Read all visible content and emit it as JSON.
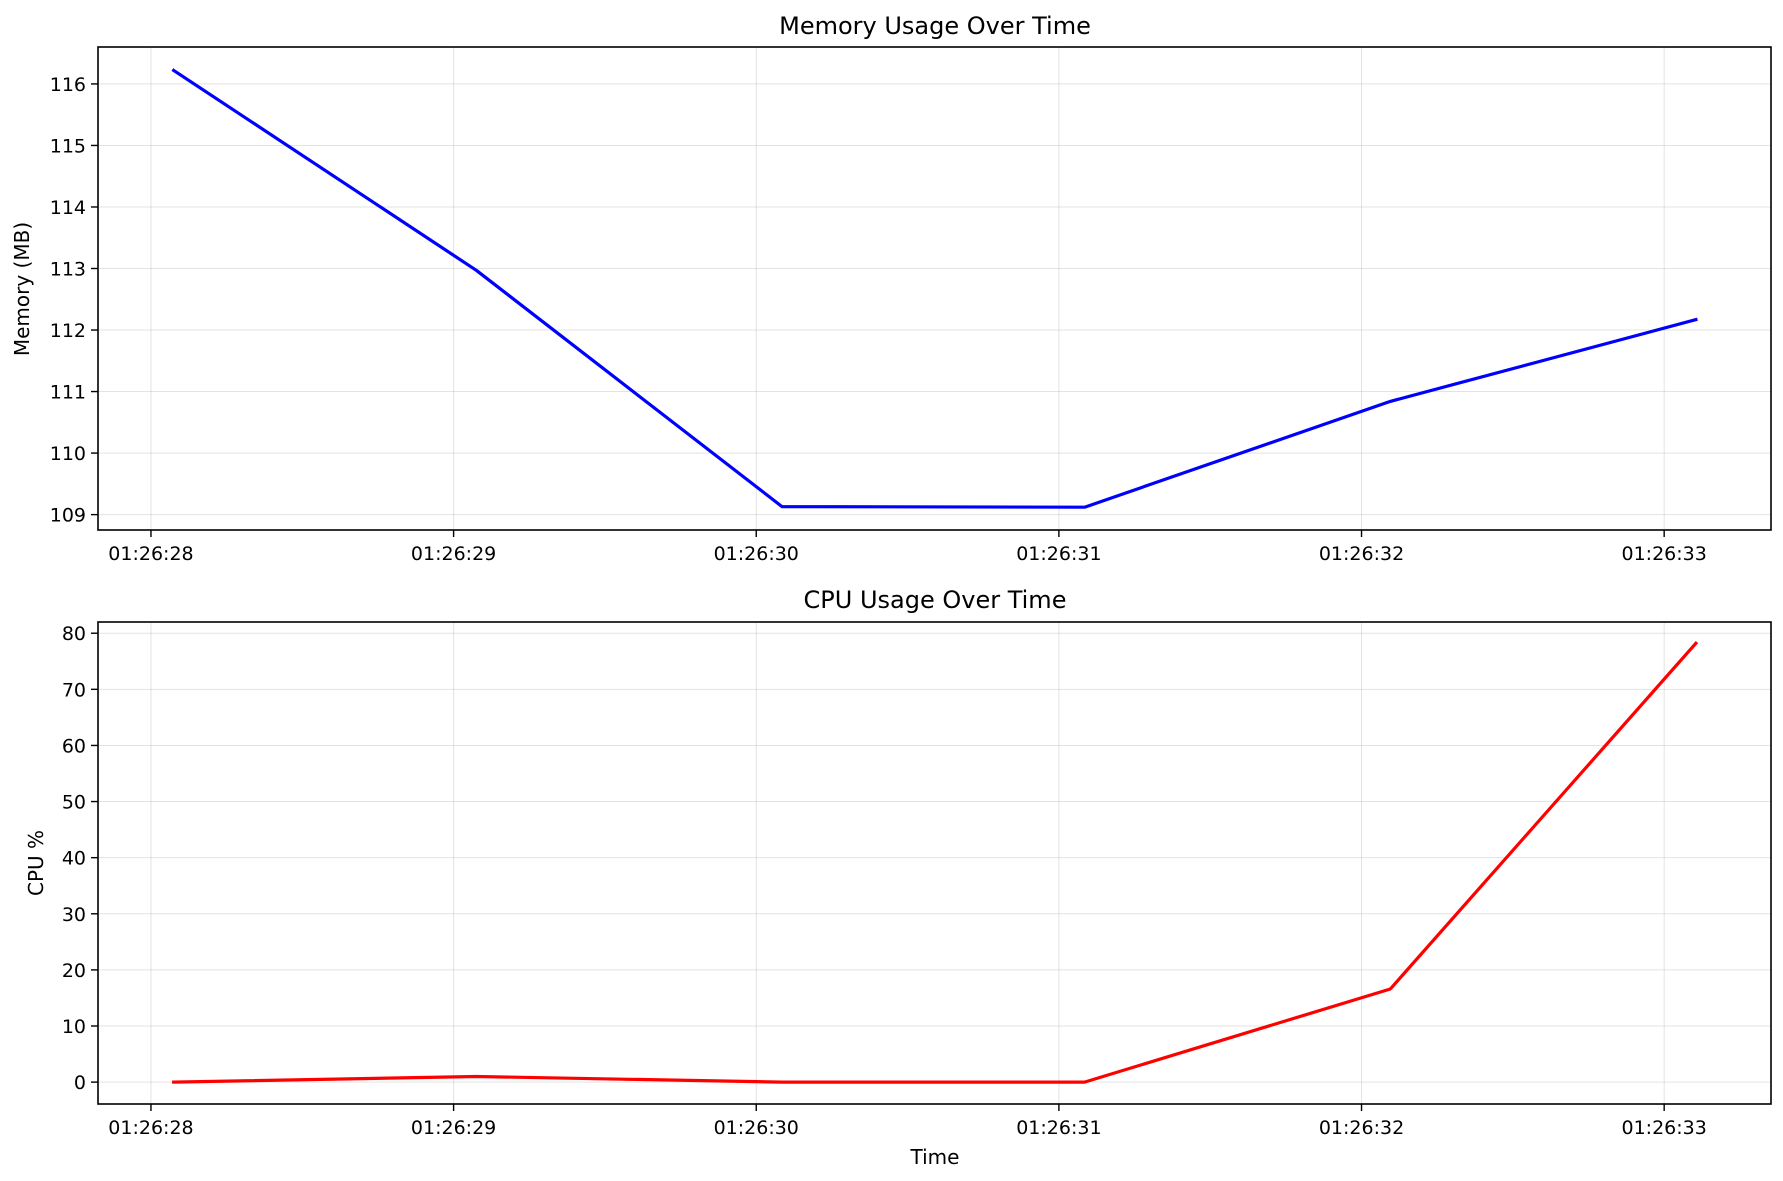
{
  "chart_data": [
    {
      "type": "line",
      "title": "Memory Usage Over Time",
      "xlabel": "",
      "ylabel": "Memory (MB)",
      "x_ticks": [
        "01:26:28",
        "01:26:29",
        "01:26:30",
        "01:26:31",
        "01:26:32",
        "01:26:33"
      ],
      "xlim": [
        "01:26:27.825",
        "01:26:33.353"
      ],
      "ylim": [
        108.75,
        116.6
      ],
      "y_ticks": [
        109,
        110,
        111,
        112,
        113,
        114,
        115,
        116
      ],
      "grid": true,
      "series": [
        {
          "color": "#0000ff",
          "x": [
            "01:26:28.075",
            "01:26:29.075",
            "01:26:30.085",
            "01:26:31.085",
            "01:26:32.095",
            "01:26:33.105"
          ],
          "y": [
            116.22,
            112.97,
            109.13,
            109.12,
            110.84,
            112.17
          ]
        }
      ]
    },
    {
      "type": "line",
      "title": "CPU Usage Over Time",
      "xlabel": "Time",
      "ylabel": "CPU %",
      "x_ticks": [
        "01:26:28",
        "01:26:29",
        "01:26:30",
        "01:26:31",
        "01:26:32",
        "01:26:33"
      ],
      "xlim": [
        "01:26:27.825",
        "01:26:33.353"
      ],
      "ylim": [
        -3.9,
        82.0
      ],
      "y_ticks": [
        0,
        10,
        20,
        30,
        40,
        50,
        60,
        70,
        80
      ],
      "grid": true,
      "series": [
        {
          "color": "#ff0000",
          "x": [
            "01:26:28.075",
            "01:26:29.075",
            "01:26:30.085",
            "01:26:31.085",
            "01:26:32.095",
            "01:26:33.105"
          ],
          "y": [
            0.0,
            1.0,
            0.0,
            0.0,
            16.6,
            78.2
          ]
        }
      ]
    }
  ]
}
